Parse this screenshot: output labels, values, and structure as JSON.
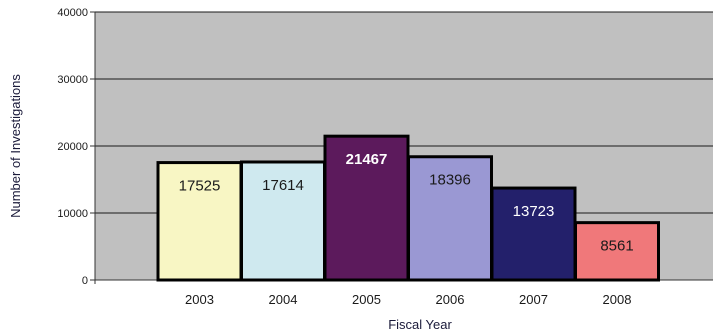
{
  "chart_data": {
    "type": "bar",
    "title": "",
    "xlabel": "Fiscal Year",
    "ylabel": "Number of Investigations",
    "categories": [
      "2003",
      "2004",
      "2005",
      "2006",
      "2007",
      "2008"
    ],
    "values": [
      17525,
      17614,
      21467,
      18396,
      13723,
      8561
    ],
    "data_labels": [
      "17525",
      "17614",
      "21467",
      "18396",
      "13723",
      "8561"
    ],
    "ylim": [
      0,
      40000
    ],
    "yticks": [
      0,
      10000,
      20000,
      30000,
      40000
    ],
    "ytick_labels": [
      "0",
      "10000",
      "20000",
      "30000",
      "40000"
    ],
    "grid": true,
    "legend": "none",
    "bar_colors": [
      "#f8f6c4",
      "#cfe9ef",
      "#5c1a5c",
      "#9a98d3",
      "#23206b",
      "#f0787a"
    ],
    "label_colors": [
      "#1a1a1a",
      "#1a1a1a",
      "#ffffff",
      "#1a1a1a",
      "#ffffff",
      "#1a1a1a"
    ],
    "plot_background": "#c0c0c0",
    "bar_outline": "#000000"
  }
}
